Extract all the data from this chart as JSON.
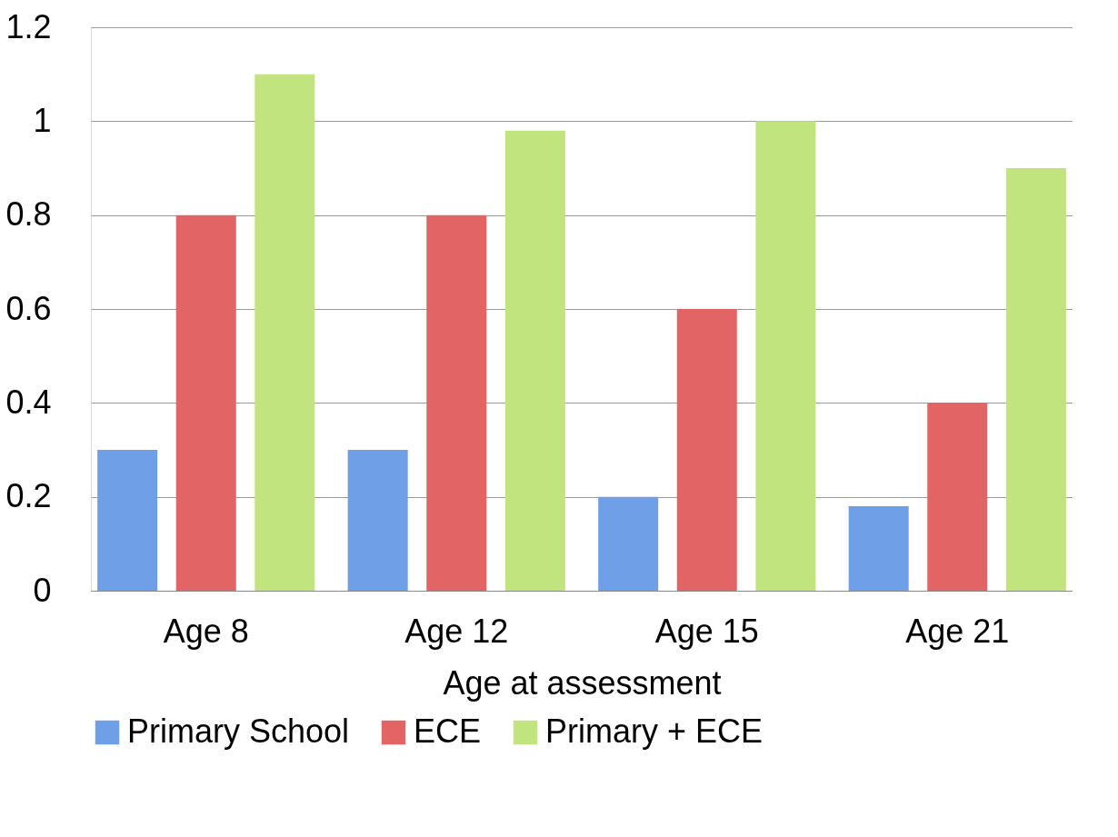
{
  "chart_data": {
    "type": "bar",
    "xlabel": "Age at assessment",
    "categories": [
      "Age 8",
      "Age 12",
      "Age 15",
      "Age 21"
    ],
    "series": [
      {
        "name": "Primary School",
        "color": "#6f9fe6",
        "values": [
          0.3,
          0.3,
          0.2,
          0.18
        ]
      },
      {
        "name": "ECE",
        "color": "#e36464",
        "values": [
          0.8,
          0.8,
          0.6,
          0.4
        ]
      },
      {
        "name": "Primary + ECE",
        "color": "#c2e47e",
        "values": [
          1.1,
          0.98,
          1.0,
          0.9
        ]
      }
    ],
    "ylim": [
      0,
      1.2
    ],
    "yticks": [
      0,
      0.2,
      0.4,
      0.6,
      0.8,
      1,
      1.2
    ],
    "grid": "y",
    "legend": "bottom"
  }
}
